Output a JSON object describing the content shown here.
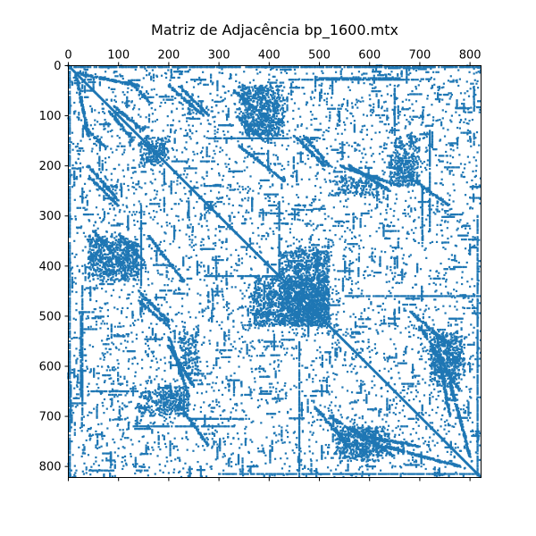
{
  "chart_data": {
    "type": "heatmap",
    "subtype": "sparsity-pattern",
    "title": "Matriz de Adjacência bp_1600.mtx",
    "xlabel": "",
    "ylabel": "",
    "matrix_size": 822,
    "x_axis_position": "top",
    "y_axis_inverted": true,
    "xlim": [
      0,
      822
    ],
    "ylim": [
      822,
      0
    ],
    "x_ticks": [
      0,
      100,
      200,
      300,
      400,
      500,
      600,
      700,
      800
    ],
    "y_ticks": [
      0,
      100,
      200,
      300,
      400,
      500,
      600,
      700,
      800
    ],
    "x_tick_labels": [
      "0",
      "100",
      "200",
      "300",
      "400",
      "500",
      "600",
      "700",
      "800"
    ],
    "y_tick_labels": [
      "0",
      "100",
      "200",
      "300",
      "400",
      "500",
      "600",
      "700",
      "800"
    ],
    "grid": false,
    "legend": "none",
    "marker_color": "#1f77b4",
    "diagonal_bands": [
      {
        "rows": [
          15,
          140
        ],
        "cols": [
          15,
          40
        ]
      },
      {
        "rows": [
          30,
          75
        ],
        "cols": [
          120,
          165
        ]
      },
      {
        "rows": [
          40,
          100
        ],
        "cols": [
          200,
          270
        ]
      },
      {
        "rows": [
          50,
          110
        ],
        "cols": [
          330,
          400
        ]
      },
      {
        "rows": [
          90,
          150
        ],
        "cols": [
          80,
          130
        ]
      },
      {
        "rows": [
          140,
          200
        ],
        "cols": [
          470,
          520
        ]
      },
      {
        "rows": [
          160,
          230
        ],
        "cols": [
          340,
          430
        ]
      },
      {
        "rows": [
          200,
          240
        ],
        "cols": [
          540,
          660
        ]
      },
      {
        "rows": [
          220,
          280
        ],
        "cols": [
          40,
          100
        ]
      },
      {
        "rows": [
          230,
          280
        ],
        "cols": [
          690,
          760
        ]
      },
      {
        "rows": [
          335,
          390
        ],
        "cols": [
          100,
          150
        ]
      },
      {
        "rows": [
          450,
          510
        ],
        "cols": [
          140,
          200
        ]
      },
      {
        "rows": [
          490,
          560
        ],
        "cols": [
          680,
          760
        ]
      },
      {
        "rows": [
          560,
          640
        ],
        "cols": [
          200,
          250
        ]
      },
      {
        "rows": [
          590,
          700
        ],
        "cols": [
          740,
          760
        ]
      },
      {
        "rows": [
          700,
          780
        ],
        "cols": [
          520,
          650
        ]
      },
      {
        "rows": [
          760,
          800
        ],
        "cols": [
          630,
          780
        ]
      }
    ],
    "dense_blocks": [
      {
        "rows": [
          40,
          140
        ],
        "cols": [
          350,
          430
        ]
      },
      {
        "rows": [
          150,
          200
        ],
        "cols": [
          140,
          190
        ]
      },
      {
        "rows": [
          340,
          420
        ],
        "cols": [
          40,
          140
        ]
      },
      {
        "rows": [
          360,
          520
        ],
        "cols": [
          450,
          520
        ]
      },
      {
        "rows": [
          420,
          520
        ],
        "cols": [
          370,
          520
        ]
      },
      {
        "rows": [
          530,
          640
        ],
        "cols": [
          720,
          780
        ]
      },
      {
        "rows": [
          650,
          700
        ],
        "cols": [
          140,
          230
        ]
      },
      {
        "rows": [
          720,
          790
        ],
        "cols": [
          540,
          620
        ]
      },
      {
        "rows": [
          180,
          240
        ],
        "cols": [
          640,
          690
        ]
      },
      {
        "rows": [
          520,
          620
        ],
        "cols": [
          220,
          260
        ]
      }
    ],
    "horizontal_streaks": [
      {
        "row": 5,
        "cols": [
          630,
          700
        ]
      },
      {
        "row": 25,
        "cols": [
          500,
          660
        ]
      },
      {
        "row": 145,
        "cols": [
          280,
          440
        ]
      },
      {
        "row": 230,
        "cols": [
          660,
          700
        ]
      },
      {
        "row": 420,
        "cols": [
          270,
          420
        ]
      },
      {
        "row": 650,
        "cols": [
          40,
          140
        ]
      },
      {
        "row": 705,
        "cols": [
          240,
          360
        ]
      },
      {
        "row": 808,
        "cols": [
          40,
          90
        ]
      }
    ],
    "vertical_streaks": [
      {
        "col": 28,
        "rows": [
          440,
          700
        ]
      },
      {
        "col": 460,
        "rows": [
          550,
          820
        ]
      },
      {
        "col": 720,
        "rows": [
          130,
          330
        ]
      },
      {
        "col": 815,
        "rows": [
          300,
          820
        ]
      },
      {
        "col": 3,
        "rows": [
          10,
          820
        ]
      }
    ],
    "background_density": 0.003,
    "symmetric": true
  }
}
